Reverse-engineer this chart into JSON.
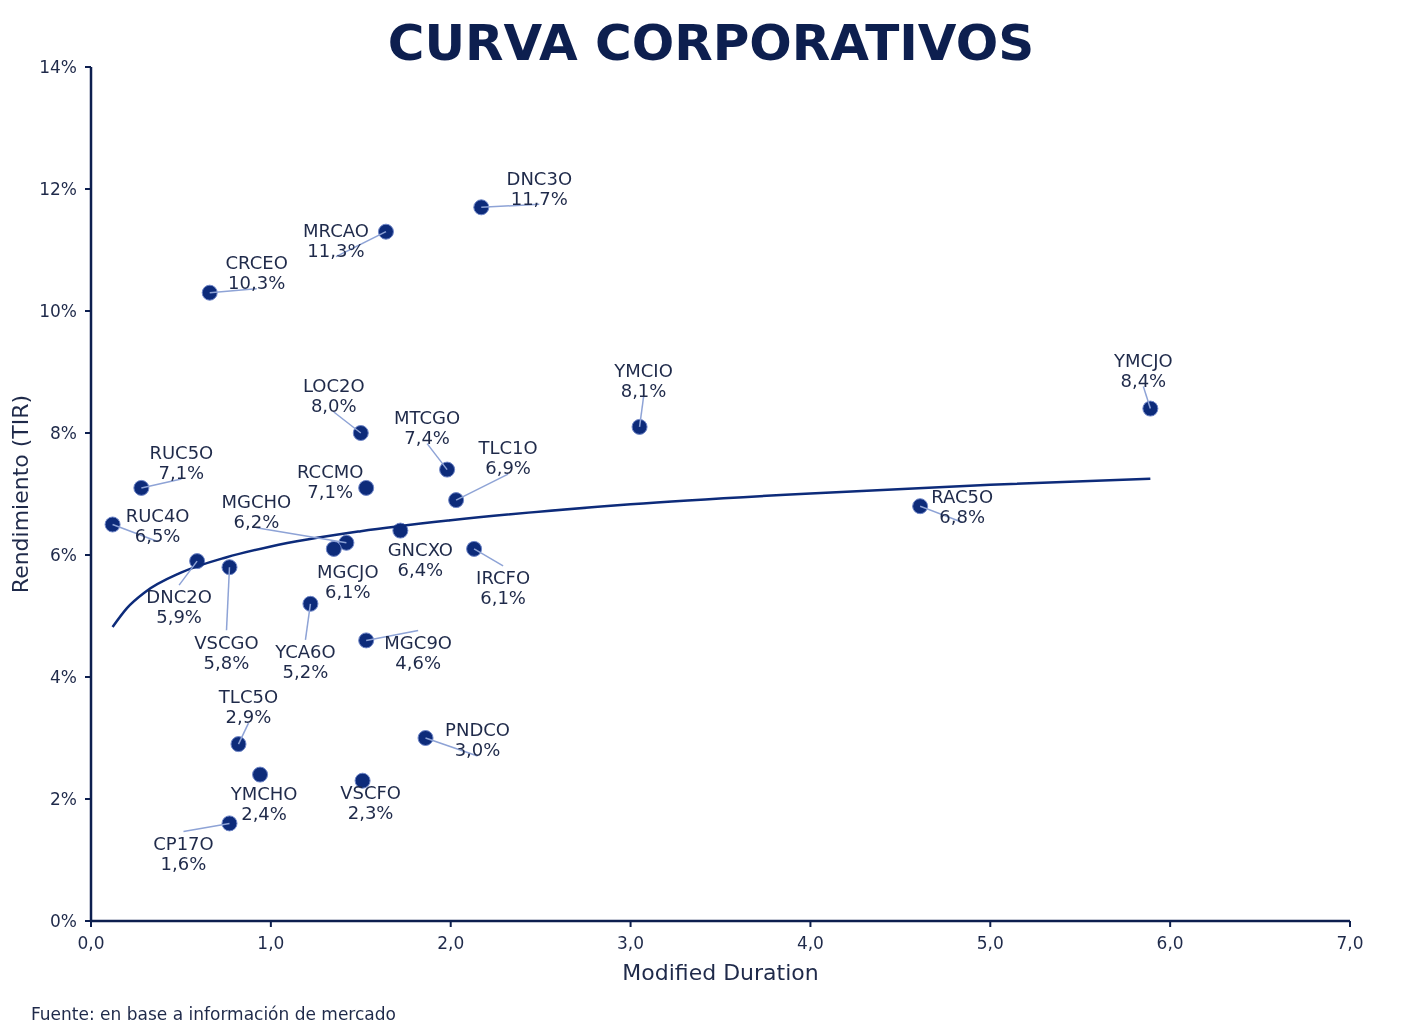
{
  "chart_data": {
    "type": "scatter",
    "title": "CURVA CORPORATIVOS",
    "xlabel": "Modified Duration",
    "ylabel": "Rendimiento (TIR)",
    "xlim": [
      0,
      7
    ],
    "xticks": [
      {
        "value": 0,
        "label": "0,0"
      },
      {
        "value": 1,
        "label": "1,0"
      },
      {
        "value": 2,
        "label": "2,0"
      },
      {
        "value": 3,
        "label": "3,0"
      },
      {
        "value": 4,
        "label": "4,0"
      },
      {
        "value": 5,
        "label": "5,0"
      },
      {
        "value": 6,
        "label": "6,0"
      },
      {
        "value": 7,
        "label": "7,0"
      }
    ],
    "ylim": [
      0,
      14
    ],
    "yticks": [
      {
        "value": 0,
        "label": "0%"
      },
      {
        "value": 2,
        "label": "2%"
      },
      {
        "value": 4,
        "label": "4%"
      },
      {
        "value": 6,
        "label": "6%"
      },
      {
        "value": 8,
        "label": "8%"
      },
      {
        "value": 10,
        "label": "10%"
      },
      {
        "value": 12,
        "label": "12%"
      },
      {
        "value": 14,
        "label": "14%"
      }
    ],
    "grid": false,
    "series": [
      {
        "marker": "circle",
        "color": "#0d2b7a",
        "x": [
          0.66,
          1.64,
          2.17,
          1.5,
          0.28,
          0.12,
          0.59,
          0.77,
          1.42,
          1.35,
          1.53,
          1.72,
          1.98,
          2.03,
          2.13,
          1.22,
          1.53,
          0.82,
          0.94,
          0.77,
          1.51,
          1.86,
          3.05,
          4.61,
          5.89
        ],
        "values": [
          10.3,
          11.3,
          11.7,
          8.0,
          7.1,
          6.5,
          5.9,
          5.8,
          6.2,
          6.1,
          7.1,
          6.4,
          7.4,
          6.9,
          6.1,
          5.2,
          4.6,
          2.9,
          2.4,
          1.6,
          2.3,
          3.0,
          8.1,
          6.8,
          8.4
        ],
        "value_labels": [
          "10,3%",
          "11,3%",
          "11,7%",
          "8,0%",
          "7,1%",
          "6,5%",
          "5,9%",
          "5,8%",
          "6,2%",
          "6,1%",
          "7,1%",
          "6,4%",
          "7,4%",
          "6,9%",
          "6,1%",
          "5,2%",
          "4,6%",
          "2,9%",
          "2,4%",
          "1,6%",
          "2,3%",
          "3,0%",
          "8,1%",
          "6,8%",
          "8,4%"
        ]
      },
      {
        "type": "line",
        "color": "#0d2b7a",
        "line_style": "solid",
        "x": [
          0.12,
          0.2,
          0.3,
          0.5,
          0.75,
          1,
          1.5,
          2,
          3,
          4,
          5,
          5.89
        ],
        "values": [
          4.82,
          5.13,
          5.39,
          5.71,
          5.96,
          6.14,
          6.39,
          6.57,
          6.83,
          7.01,
          7.15,
          7.25
        ]
      }
    ],
    "annotations": [
      {
        "text": "CRCEO",
        "x": 0.66,
        "y": 10.3
      },
      {
        "text": "MRCAO",
        "x": 1.64,
        "y": 11.3
      },
      {
        "text": "DNC3O",
        "x": 2.17,
        "y": 11.7
      },
      {
        "text": "LOC2O",
        "x": 1.5,
        "y": 8.0
      },
      {
        "text": "RUC5O",
        "x": 0.28,
        "y": 7.1
      },
      {
        "text": "RUC4O",
        "x": 0.12,
        "y": 6.5
      },
      {
        "text": "DNC2O",
        "x": 0.59,
        "y": 5.9
      },
      {
        "text": "VSCGO",
        "x": 0.77,
        "y": 5.8
      },
      {
        "text": "MGCHO",
        "x": 1.42,
        "y": 6.2
      },
      {
        "text": "MGCJO",
        "x": 1.35,
        "y": 6.1
      },
      {
        "text": "RCCMO",
        "x": 1.53,
        "y": 7.1
      },
      {
        "text": "GNCXO",
        "x": 1.72,
        "y": 6.4
      },
      {
        "text": "MTCGO",
        "x": 1.98,
        "y": 7.4
      },
      {
        "text": "TLC1O",
        "x": 2.03,
        "y": 6.9
      },
      {
        "text": "IRCFO",
        "x": 2.13,
        "y": 6.1
      },
      {
        "text": "YCA6O",
        "x": 1.22,
        "y": 5.2
      },
      {
        "text": "MGC9O",
        "x": 1.53,
        "y": 4.6
      },
      {
        "text": "TLC5O",
        "x": 0.82,
        "y": 2.9
      },
      {
        "text": "YMCHO",
        "x": 0.94,
        "y": 2.4
      },
      {
        "text": "CP17O",
        "x": 0.77,
        "y": 1.6
      },
      {
        "text": "VSCFO",
        "x": 1.51,
        "y": 2.3
      },
      {
        "text": "PNDCO",
        "x": 1.86,
        "y": 3.0
      },
      {
        "text": "YMCIO",
        "x": 3.05,
        "y": 8.1
      },
      {
        "text": "RAC5O",
        "x": 4.61,
        "y": 6.8
      },
      {
        "text": "YMCJO",
        "x": 5.89,
        "y": 8.4
      },
      "Fuente: en base a información de mercado"
    ]
  }
}
